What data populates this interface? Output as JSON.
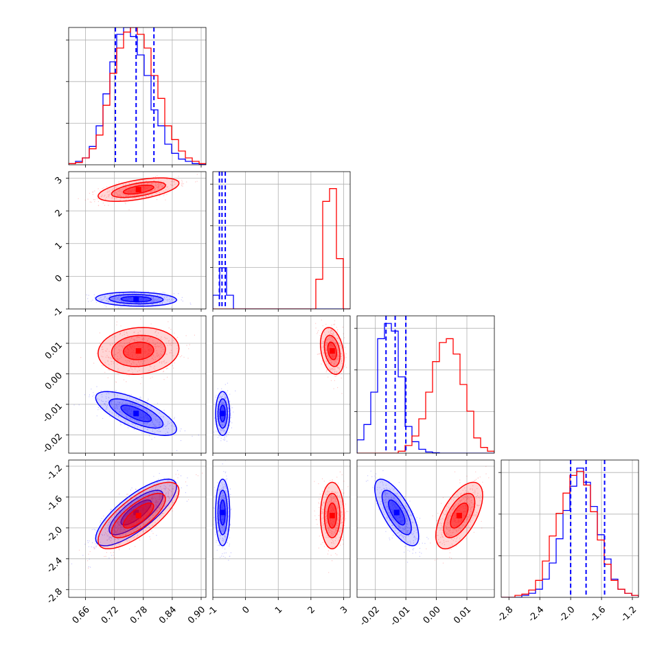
{
  "chart_data": {
    "type": "corner",
    "parameters": 4,
    "colors": {
      "series_a": "#0000ff",
      "series_b": "#ff0000",
      "grid": "#b0b0b0"
    },
    "series": [
      {
        "color": "#0000ff",
        "means": [
          0.765,
          -0.7,
          -0.013,
          -1.8
        ],
        "sds": [
          0.035,
          0.09,
          0.003,
          0.18
        ],
        "corr": [
          [
            0,
            1,
            -0.1
          ],
          [
            0,
            2,
            -0.72
          ],
          [
            0,
            3,
            0.78
          ],
          [
            1,
            2,
            0.0
          ],
          [
            1,
            3,
            0.0
          ],
          [
            2,
            3,
            -0.72
          ]
        ]
      },
      {
        "color": "#ff0000",
        "means": [
          0.77,
          2.65,
          0.0075,
          -1.84
        ],
        "sds": [
          0.035,
          0.15,
          0.0032,
          0.18
        ],
        "corr": [
          [
            0,
            1,
            0.55
          ],
          [
            0,
            2,
            0.1
          ],
          [
            0,
            3,
            0.75
          ],
          [
            1,
            2,
            -0.3
          ],
          [
            1,
            3,
            0.0
          ],
          [
            2,
            3,
            0.6
          ]
        ]
      }
    ],
    "quantile_lines": [
      [
        0.722,
        0.765,
        0.802
      ],
      [
        -0.8,
        -0.72,
        -0.62
      ],
      [
        -0.0165,
        -0.0135,
        -0.01
      ],
      [
        -2.0,
        -1.8,
        -1.56
      ]
    ],
    "ranges": [
      [
        0.625,
        0.91
      ],
      [
        -1.0,
        3.2
      ],
      [
        -0.026,
        0.019
      ],
      [
        -2.9,
        -1.12
      ]
    ],
    "hist_ylim": [
      [
        0,
        6
      ],
      [
        0,
        3
      ],
      [
        0,
        3.6
      ],
      [
        0,
        3.4
      ]
    ],
    "hist_counts": [
      {
        "blue": [
          0.05,
          0.15,
          0.3,
          0.8,
          1.7,
          3.1,
          4.5,
          5.7,
          6.0,
          5.6,
          4.8,
          3.9,
          2.4,
          1.7,
          0.9,
          0.5,
          0.25,
          0.15,
          0.05,
          0.03
        ],
        "red": [
          0.05,
          0.1,
          0.3,
          0.7,
          1.3,
          2.6,
          4.0,
          5.1,
          5.8,
          6.0,
          5.7,
          5.1,
          3.9,
          2.9,
          1.7,
          1.1,
          0.6,
          0.3,
          0.15,
          0.05
        ]
      },
      {
        "blue": [
          0.3,
          0.9,
          0.3,
          0,
          0,
          0,
          0,
          0,
          0,
          0,
          0,
          0,
          0,
          0,
          0,
          0,
          0,
          0,
          0,
          0
        ],
        "red": [
          0,
          0,
          0,
          0,
          0,
          0,
          0,
          0,
          0,
          0,
          0,
          0,
          0,
          0,
          0,
          0.65,
          2.35,
          2.63,
          1.1,
          0
        ]
      },
      {
        "blue": [
          0.35,
          0.75,
          1.6,
          3.0,
          3.4,
          3.2,
          2.0,
          0.7,
          0.3,
          0.1,
          0.03,
          0.01,
          0,
          0,
          0,
          0,
          0,
          0,
          0,
          0
        ],
        "red": [
          0,
          0,
          0,
          0,
          0,
          0,
          0.05,
          0.2,
          0.45,
          0.9,
          1.6,
          2.4,
          2.9,
          3.0,
          2.6,
          1.8,
          1.1,
          0.4,
          0.15,
          0.05
        ]
      },
      {
        "blue": [
          0,
          0,
          0,
          0.05,
          0.1,
          0.2,
          0.45,
          0.85,
          1.45,
          2.15,
          2.75,
          3.2,
          2.85,
          2.25,
          1.55,
          0.95,
          0.45,
          0.2,
          0.1,
          0.05
        ],
        "red": [
          0,
          0,
          0.05,
          0.08,
          0.18,
          0.42,
          0.9,
          1.52,
          2.08,
          2.58,
          3.02,
          3.12,
          2.78,
          2.12,
          1.42,
          0.82,
          0.42,
          0.2,
          0.1,
          0.05
        ]
      }
    ],
    "x_ticks": [
      [
        "0.66",
        "0.72",
        "0.78",
        "0.84",
        "0.90"
      ],
      [
        "-1",
        "0",
        "1",
        "2",
        "3"
      ],
      [
        "-0.02",
        "-0.01",
        "0.00",
        "0.01"
      ],
      [
        "-2.8",
        "-2.4",
        "-2.0",
        "-1.6",
        "-1.2"
      ]
    ],
    "y_ticks": [
      null,
      [
        "3",
        "2",
        "1",
        "0",
        "-1"
      ],
      [
        "0.01",
        "0.00",
        "-0.01",
        "-0.02"
      ],
      [
        "-1.2",
        "-1.6",
        "-2.0",
        "-2.4",
        "-2.8"
      ]
    ],
    "tick_values": [
      [
        0.66,
        0.72,
        0.78,
        0.84,
        0.9
      ],
      [
        -1,
        0,
        1,
        2,
        3
      ],
      [
        -0.02,
        -0.01,
        0.0,
        0.01
      ],
      [
        -2.8,
        -2.4,
        -2.0,
        -1.6,
        -1.2
      ]
    ],
    "grid": true,
    "legend": "none"
  }
}
